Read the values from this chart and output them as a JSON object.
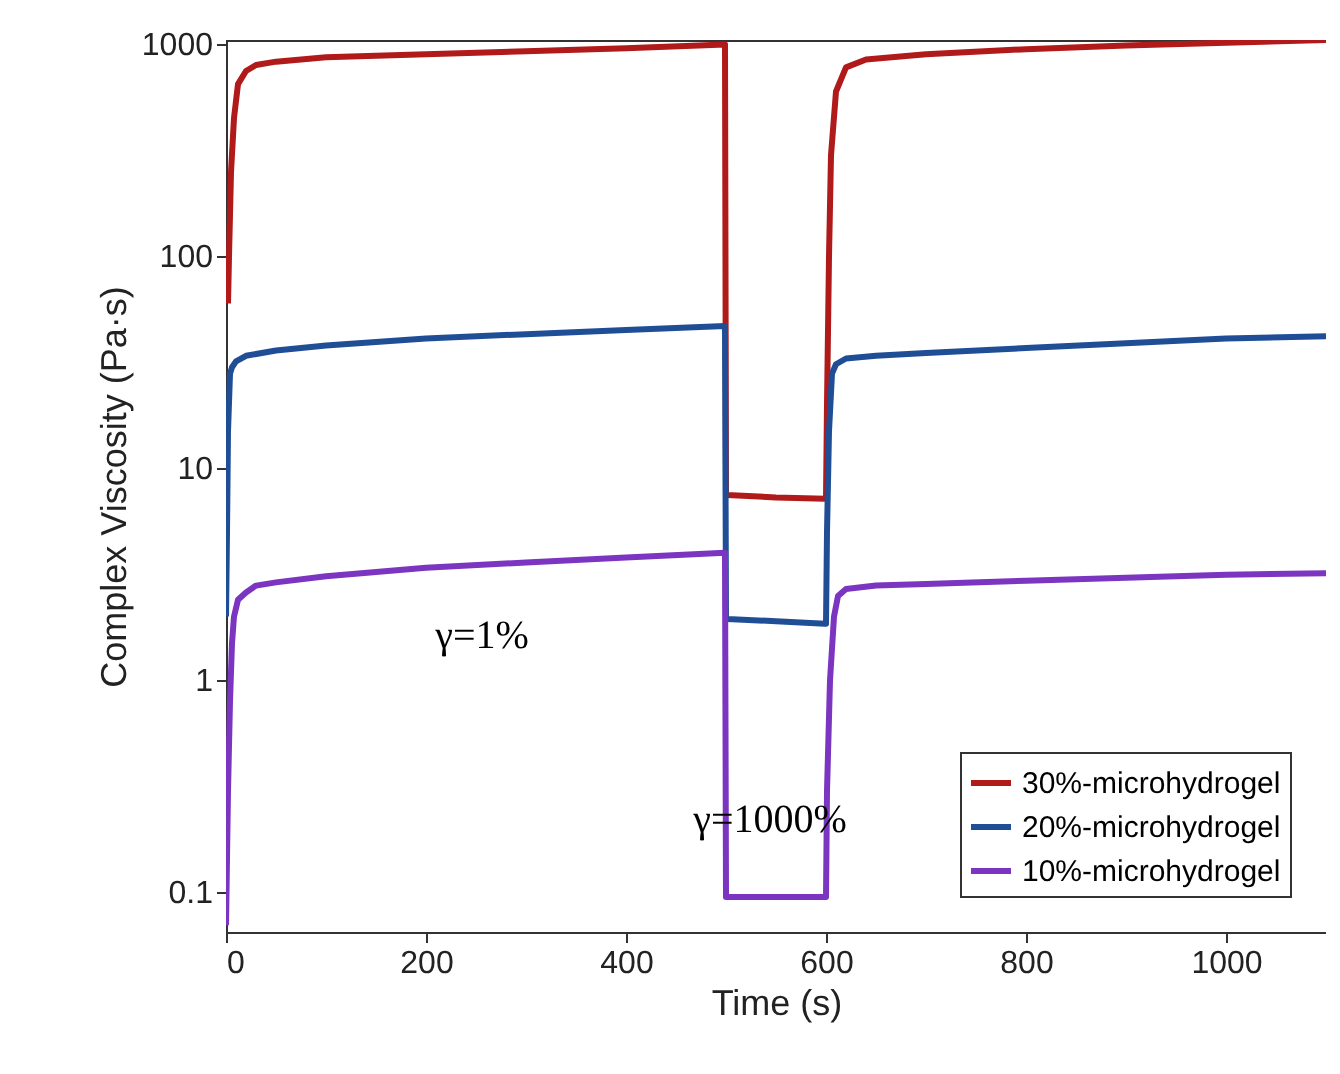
{
  "chart_data": {
    "type": "line",
    "xlabel": "Time (s)",
    "ylabel": "Complex Viscosity (Pa·s)",
    "log": "y",
    "xlim": [
      0,
      1100
    ],
    "xticks": [
      0,
      200,
      400,
      600,
      800,
      1000
    ],
    "ylim": [
      0.065,
      1050
    ],
    "yticks": [
      0.1,
      1,
      10,
      100,
      1000
    ],
    "grid": false,
    "legend": "bottom right",
    "marker": "none",
    "line_style": "solid",
    "annotations": [
      "γ=1%",
      "γ=1000%"
    ],
    "series": [
      {
        "name": "30%-microhydrogel",
        "color": "#b01a1a",
        "x": [
          2,
          3,
          5,
          8,
          12,
          20,
          30,
          50,
          100,
          200,
          300,
          400,
          499,
          500,
          501,
          550,
          599,
          600,
          601,
          603,
          605,
          610,
          620,
          640,
          700,
          800,
          900,
          1000,
          1100
        ],
        "values": [
          60,
          100,
          250,
          450,
          650,
          750,
          800,
          830,
          870,
          900,
          930,
          960,
          1000,
          7.5,
          7.5,
          7.3,
          7.2,
          7.2,
          20,
          100,
          300,
          600,
          780,
          850,
          900,
          950,
          990,
          1020,
          1050
        ]
      },
      {
        "name": "20%-microhydrogel",
        "color": "#1f4e96",
        "x": [
          0,
          1,
          2,
          4,
          6,
          10,
          20,
          50,
          100,
          200,
          300,
          400,
          499,
          500,
          501,
          550,
          599,
          600,
          601,
          603,
          606,
          610,
          620,
          650,
          700,
          800,
          900,
          1000,
          1100
        ],
        "values": [
          2.0,
          5,
          15,
          28,
          30,
          32,
          34,
          36,
          38,
          41,
          43,
          45,
          47,
          1.95,
          1.95,
          1.9,
          1.85,
          1.85,
          5,
          15,
          28,
          31,
          33,
          34,
          35,
          37,
          39,
          41,
          42
        ]
      },
      {
        "name": "10%-microhydrogel",
        "color": "#7b35c0",
        "x": [
          0,
          2,
          4,
          6,
          8,
          12,
          20,
          30,
          50,
          100,
          200,
          300,
          400,
          499,
          500,
          501,
          550,
          599,
          600,
          601,
          604,
          608,
          612,
          620,
          650,
          700,
          800,
          900,
          1000,
          1100
        ],
        "values": [
          0.07,
          0.3,
          0.8,
          1.5,
          2,
          2.4,
          2.6,
          2.8,
          2.9,
          3.1,
          3.4,
          3.6,
          3.8,
          4.0,
          0.095,
          0.095,
          0.095,
          0.095,
          0.095,
          0.3,
          1,
          2,
          2.5,
          2.7,
          2.8,
          2.85,
          2.95,
          3.05,
          3.15,
          3.2
        ]
      }
    ]
  }
}
